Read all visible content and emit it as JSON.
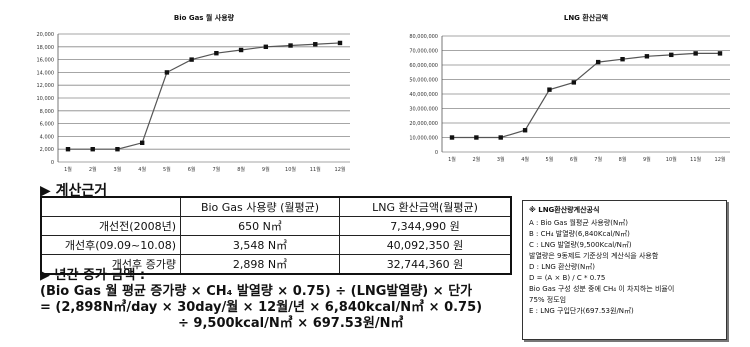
{
  "chart_data": [
    {
      "type": "line",
      "title": "Bio Gas 월 사용량",
      "categories": [
        "1월",
        "2월",
        "3월",
        "4월",
        "5월",
        "6월",
        "7월",
        "8월",
        "9월",
        "10월",
        "11월",
        "12월"
      ],
      "series": [
        {
          "values": [
            2000,
            2000,
            2000,
            3000,
            14000,
            16000,
            17000,
            17500,
            18000,
            18200,
            18400,
            18600
          ]
        }
      ],
      "y_ticks": [
        "20,000",
        "18,000",
        "16,000",
        "14,000",
        "12,000",
        "10,000",
        "8,000",
        "6,000",
        "4,000",
        "2,000",
        "0"
      ],
      "ylim": [
        0,
        20000
      ],
      "grid": true,
      "legend": "none",
      "colors": {
        "line": "#555555",
        "marker": "#111111",
        "grid": "#888888"
      }
    },
    {
      "type": "line",
      "title": "LNG 환산금액",
      "categories": [
        "1월",
        "2월",
        "3월",
        "4월",
        "5월",
        "6월",
        "7월",
        "8월",
        "9월",
        "10월",
        "11월",
        "12월"
      ],
      "series": [
        {
          "values": [
            10000000,
            10000000,
            10000000,
            15000000,
            43000000,
            48000000,
            62000000,
            64000000,
            66000000,
            67000000,
            68000000,
            68000000
          ]
        }
      ],
      "y_ticks": [
        "80,000,000",
        "70,000,000",
        "60,000,000",
        "50,000,000",
        "40,000,000",
        "30,000,000",
        "20,000,000",
        "10,000,000",
        "0"
      ],
      "ylim": [
        0,
        80000000
      ],
      "grid": true,
      "legend": "none",
      "colors": {
        "line": "#555555",
        "marker": "#111111",
        "grid": "#888888"
      }
    }
  ],
  "section_title": "▶ 계산근거",
  "table": {
    "headers": [
      "",
      "Bio Gas 사용량 (월평균)",
      "LNG 환산금액(월평균)"
    ],
    "rows": [
      {
        "label": "개선전(2008년)",
        "gas": "650 N㎥",
        "amount": "7,344,990 원"
      },
      {
        "label": "개선후(09.09~10.08)",
        "gas": "3,548 N㎥",
        "amount": "40,092,350 원"
      },
      {
        "label": "개선후 증가량",
        "gas": "2,898 N㎥",
        "amount": "32,744,360 원"
      }
    ]
  },
  "formula": {
    "title": "▶ 년간 증가 금액 :",
    "line1": "(Bio Gas 월 평균 증가량 × CH₄ 발열량 × 0.75) ÷ (LNG발열량) × 단가",
    "line2": "= (2,898N㎥/day × 30day/월 × 12월/년 × 6,840kcal/N㎥ × 0.75)",
    "line3": "÷ 9,500kcal/N㎥ × 697.53원/N㎥"
  },
  "note": {
    "title": "※ LNG환산량계산공식",
    "lines": [
      "A : Bio Gas 월평균 사용량(N㎥)",
      "B : CH₄ 발열량(6,840Kcal/N㎥)",
      "C : LNG 발열량(9,500Kcal/N㎥)",
      "발열량은 9동제트 기준상의 계산식을 사용함",
      "D : LNG 환산량(N㎥)",
      "D = (A × B) / C * 0.75",
      "Bio Gas 구성 성분 중에 CH₄ 이 차지하는 비율이",
      "75% 정도임",
      "E : LNG 구입단가(697.53원/N㎥)"
    ]
  }
}
